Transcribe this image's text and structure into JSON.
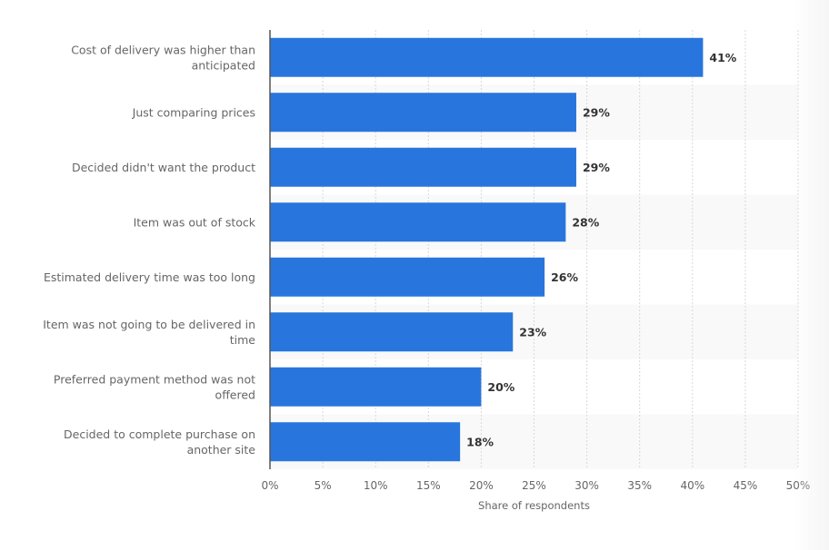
{
  "chart_data": {
    "type": "bar",
    "orientation": "horizontal",
    "title": "",
    "categories": [
      [
        "Cost of delivery was higher than",
        "anticipated"
      ],
      [
        "Just comparing prices"
      ],
      [
        "Decided didn't want the product"
      ],
      [
        "Item was out of stock"
      ],
      [
        "Estimated delivery time was too long"
      ],
      [
        "Item was not going to be delivered in",
        "time"
      ],
      [
        "Preferred payment method was not",
        "offered"
      ],
      [
        "Decided to complete purchase on",
        "another site"
      ]
    ],
    "values": [
      41,
      29,
      29,
      28,
      26,
      23,
      20,
      18
    ],
    "value_labels": [
      "41%",
      "29%",
      "29%",
      "28%",
      "26%",
      "23%",
      "20%",
      "18%"
    ],
    "xlabel": "Share of respondents",
    "ylabel": "",
    "xlim": [
      0,
      50
    ],
    "ticks": [
      0,
      5,
      10,
      15,
      20,
      25,
      30,
      35,
      40,
      45,
      50
    ],
    "tick_labels": [
      "0%",
      "5%",
      "10%",
      "15%",
      "20%",
      "25%",
      "30%",
      "35%",
      "40%",
      "45%",
      "50%"
    ],
    "grid": true,
    "legend": "none",
    "bar_color": "#2876dd",
    "band_color": "#f9f9f9"
  }
}
